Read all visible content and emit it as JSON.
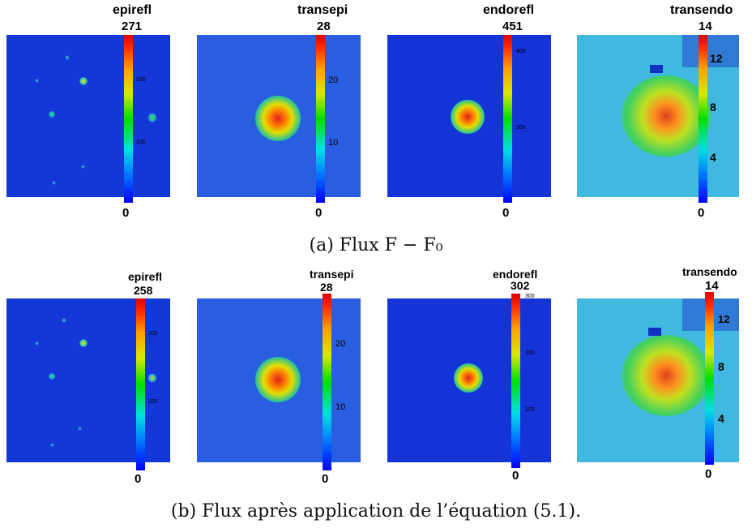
{
  "figure_a": {
    "caption": "(a) Flux F − F₀",
    "panels": [
      {
        "title": "epirefl",
        "max": "271",
        "min": "0",
        "ticks": [
          "200",
          "100"
        ]
      },
      {
        "title": "transepi",
        "max": "28",
        "min": "0",
        "ticks": [
          "20",
          "10"
        ]
      },
      {
        "title": "endorefl",
        "max": "451",
        "min": "0",
        "ticks": [
          "400",
          "200"
        ]
      },
      {
        "title": "transendo",
        "max": "14",
        "min": "0",
        "ticks": [
          "12",
          "8",
          "4"
        ]
      }
    ]
  },
  "figure_b": {
    "caption": "(b) Flux après application de l’équation (5.1).",
    "panels": [
      {
        "title": "epirefl",
        "max": "258",
        "min": "0",
        "ticks": [
          "200",
          "100"
        ]
      },
      {
        "title": "transepi",
        "max": "28",
        "min": "0",
        "ticks": [
          "20",
          "10"
        ]
      },
      {
        "title": "endorefl",
        "max": "302",
        "min": "0",
        "ticks": [
          "300",
          "200",
          "100"
        ]
      },
      {
        "title": "transendo",
        "max": "14",
        "min": "0",
        "ticks": [
          "12",
          "8",
          "4"
        ]
      }
    ]
  }
}
